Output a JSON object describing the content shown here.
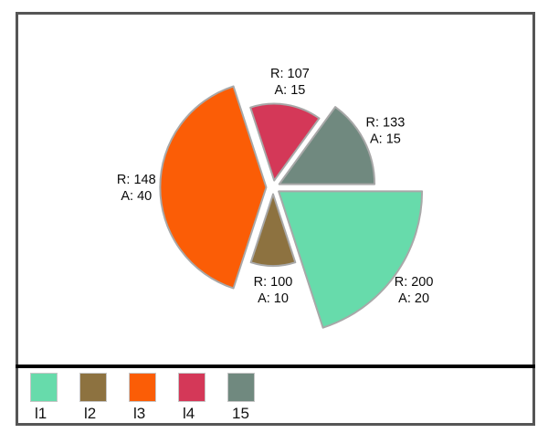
{
  "window": {
    "background_color": "#ffffff",
    "frame_border_color": "#555555",
    "separator_color": "#000000"
  },
  "chart_data": {
    "type": "pie",
    "variant": "exploded-rose-polar",
    "title": "",
    "direction": "clockwise",
    "start_angle_deg": 0,
    "angle_unit": "percent-of-circle",
    "stroke_color": "#a8a8a8",
    "label_prefixes": {
      "radius": "R: ",
      "angle": "A: "
    },
    "series": [
      {
        "name": "l1",
        "radius": 200,
        "angle_percent": 20,
        "color": "#67DBAB"
      },
      {
        "name": "l2",
        "radius": 100,
        "angle_percent": 10,
        "color": "#8D7240"
      },
      {
        "name": "l3",
        "radius": 148,
        "angle_percent": 40,
        "color": "#FB5D06"
      },
      {
        "name": "l4",
        "radius": 107,
        "angle_percent": 15,
        "color": "#D43858"
      },
      {
        "name": "15",
        "radius": 133,
        "angle_percent": 15,
        "color": "#70897F"
      }
    ],
    "slice_labels": [
      [
        "R: 200",
        "A: 20"
      ],
      [
        "R: 100",
        "A: 10"
      ],
      [
        "R: 148",
        "A: 40"
      ],
      [
        "R: 107",
        "A: 15"
      ],
      [
        "R: 133",
        "A: 15"
      ]
    ],
    "legend_position": "bottom-left"
  },
  "legend": {
    "items": [
      {
        "label": "l1",
        "color": "#67DBAB"
      },
      {
        "label": "l2",
        "color": "#8D7240"
      },
      {
        "label": "l3",
        "color": "#FB5D06"
      },
      {
        "label": "l4",
        "color": "#D43858"
      },
      {
        "label": "15",
        "color": "#70897F"
      }
    ]
  }
}
